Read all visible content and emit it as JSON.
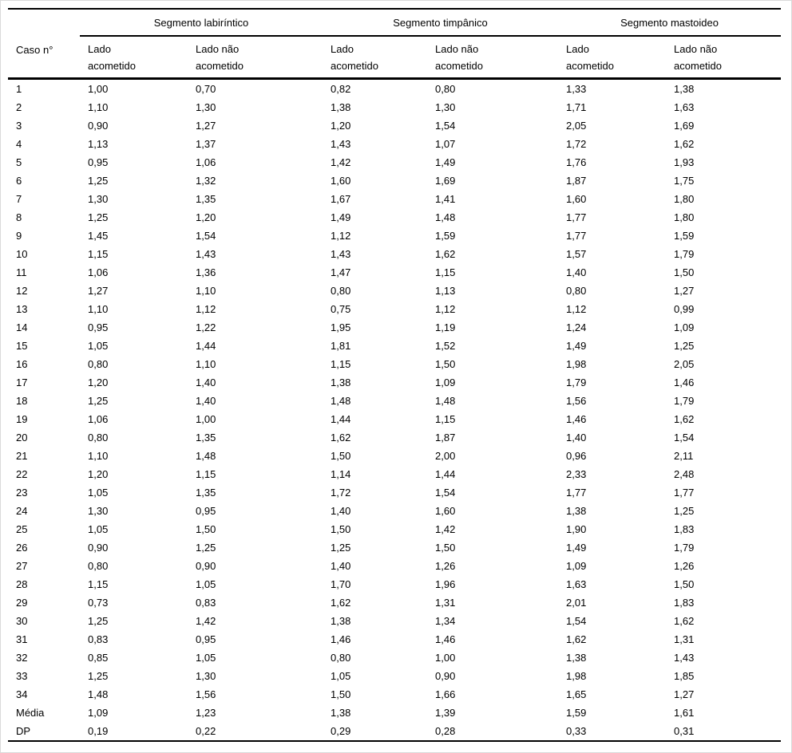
{
  "table": {
    "corner_header": "Caso n°",
    "groups": [
      {
        "label": "Segmento labiríntico"
      },
      {
        "label": "Segmento timpânico"
      },
      {
        "label": "Segmento mastoideo"
      }
    ],
    "sub_headers": {
      "affected": "Lado\nacometido",
      "not_affected": "Lado não\nacometido"
    },
    "rows": [
      [
        "1",
        "1,00",
        "0,70",
        "0,82",
        "0,80",
        "1,33",
        "1,38"
      ],
      [
        "2",
        "1,10",
        "1,30",
        "1,38",
        "1,30",
        "1,71",
        "1,63"
      ],
      [
        "3",
        "0,90",
        "1,27",
        "1,20",
        "1,54",
        "2,05",
        "1,69"
      ],
      [
        "4",
        "1,13",
        "1,37",
        "1,43",
        "1,07",
        "1,72",
        "1,62"
      ],
      [
        "5",
        "0,95",
        "1,06",
        "1,42",
        "1,49",
        "1,76",
        "1,93"
      ],
      [
        "6",
        "1,25",
        "1,32",
        "1,60",
        "1,69",
        "1,87",
        "1,75"
      ],
      [
        "7",
        "1,30",
        "1,35",
        "1,67",
        "1,41",
        "1,60",
        "1,80"
      ],
      [
        "8",
        "1,25",
        "1,20",
        "1,49",
        "1,48",
        "1,77",
        "1,80"
      ],
      [
        "9",
        "1,45",
        "1,54",
        "1,12",
        "1,59",
        "1,77",
        "1,59"
      ],
      [
        "10",
        "1,15",
        "1,43",
        "1,43",
        "1,62",
        "1,57",
        "1,79"
      ],
      [
        "11",
        "1,06",
        "1,36",
        "1,47",
        "1,15",
        "1,40",
        "1,50"
      ],
      [
        "12",
        "1,27",
        "1,10",
        "0,80",
        "1,13",
        "0,80",
        "1,27"
      ],
      [
        "13",
        "1,10",
        "1,12",
        "0,75",
        "1,12",
        "1,12",
        "0,99"
      ],
      [
        "14",
        "0,95",
        "1,22",
        "1,95",
        "1,19",
        "1,24",
        "1,09"
      ],
      [
        "15",
        "1,05",
        "1,44",
        "1,81",
        "1,52",
        "1,49",
        "1,25"
      ],
      [
        "16",
        "0,80",
        "1,10",
        "1,15",
        "1,50",
        "1,98",
        "2,05"
      ],
      [
        "17",
        "1,20",
        "1,40",
        "1,38",
        "1,09",
        "1,79",
        "1,46"
      ],
      [
        "18",
        "1,25",
        "1,40",
        "1,48",
        "1,48",
        "1,56",
        "1,79"
      ],
      [
        "19",
        "1,06",
        "1,00",
        "1,44",
        "1,15",
        "1,46",
        "1,62"
      ],
      [
        "20",
        "0,80",
        "1,35",
        "1,62",
        "1,87",
        "1,40",
        "1,54"
      ],
      [
        "21",
        "1,10",
        "1,48",
        "1,50",
        "2,00",
        "0,96",
        "2,11"
      ],
      [
        "22",
        "1,20",
        "1,15",
        "1,14",
        "1,44",
        "2,33",
        "2,48"
      ],
      [
        "23",
        "1,05",
        "1,35",
        "1,72",
        "1,54",
        "1,77",
        "1,77"
      ],
      [
        "24",
        "1,30",
        "0,95",
        "1,40",
        "1,60",
        "1,38",
        "1,25"
      ],
      [
        "25",
        "1,05",
        "1,50",
        "1,50",
        "1,42",
        "1,90",
        "1,83"
      ],
      [
        "26",
        "0,90",
        "1,25",
        "1,25",
        "1,50",
        "1,49",
        "1,79"
      ],
      [
        "27",
        "0,80",
        "0,90",
        "1,40",
        "1,26",
        "1,09",
        "1,26"
      ],
      [
        "28",
        "1,15",
        "1,05",
        "1,70",
        "1,96",
        "1,63",
        "1,50"
      ],
      [
        "29",
        "0,73",
        "0,83",
        "1,62",
        "1,31",
        "2,01",
        "1,83"
      ],
      [
        "30",
        "1,25",
        "1,42",
        "1,38",
        "1,34",
        "1,54",
        "1,62"
      ],
      [
        "31",
        "0,83",
        "0,95",
        "1,46",
        "1,46",
        "1,62",
        "1,31"
      ],
      [
        "32",
        "0,85",
        "1,05",
        "0,80",
        "1,00",
        "1,38",
        "1,43"
      ],
      [
        "33",
        "1,25",
        "1,30",
        "1,05",
        "0,90",
        "1,98",
        "1,85"
      ],
      [
        "34",
        "1,48",
        "1,56",
        "1,50",
        "1,66",
        "1,65",
        "1,27"
      ],
      [
        "Média",
        "1,09",
        "1,23",
        "1,38",
        "1,39",
        "1,59",
        "1,61"
      ],
      [
        "DP",
        "0,19",
        "0,22",
        "0,29",
        "0,28",
        "0,33",
        "0,31"
      ]
    ]
  },
  "chart_data": {
    "type": "table",
    "title": "",
    "column_groups": [
      "Segmento labiríntico",
      "Segmento timpânico",
      "Segmento mastoideo"
    ],
    "columns": [
      "Caso n°",
      "Lado acometido",
      "Lado não acometido",
      "Lado acometido",
      "Lado não acometido",
      "Lado acometido",
      "Lado não acometido"
    ]
  }
}
